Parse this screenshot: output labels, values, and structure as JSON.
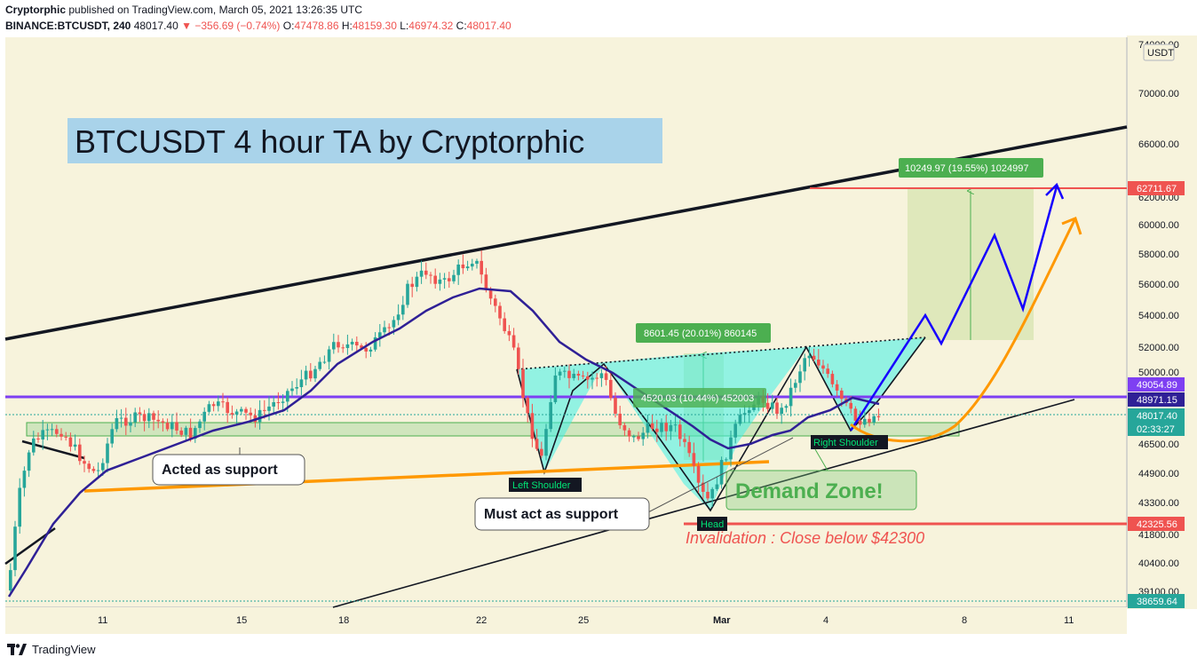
{
  "header": {
    "author": "Cryptorphic",
    "published_text": "published on TradingView.com, March 05, 2021 13:26:35 UTC",
    "symbol": "BINANCE:BTCUSDT, 240",
    "last": "48017.40",
    "change": "−356.69 (−0.74%)",
    "o_label": "O:",
    "o": "47478.86",
    "h_label": "H:",
    "h": "48159.30",
    "l_label": "L:",
    "l": "46974.32",
    "c_label": "C:",
    "c": "48017.40"
  },
  "footer": {
    "brand": "TradingView"
  },
  "colors": {
    "bg": "#f7f3dc",
    "up": "#26a69a",
    "down": "#ef5350",
    "ma": "#2f2096",
    "support": "#ff9800",
    "purple": "#7e3ff2",
    "zone": "#77c877",
    "cyan": "#3ff0e8",
    "blue": "#1600ff"
  },
  "chart_data": {
    "type": "candlestick",
    "title": "BTCUSDT 4 hour TA by Cryptorphic",
    "currency": "USDT",
    "y_scale": "log",
    "y_ticks": [
      "74000.00",
      "70000.00",
      "66000.00",
      "62000.00",
      "60000.00",
      "58000.00",
      "56000.00",
      "54000.00",
      "52000.00",
      "50000.00",
      "46500.00",
      "44900.00",
      "43300.00",
      "41800.00",
      "40400.00",
      "39100.00"
    ],
    "x_ticks": [
      "11",
      "15",
      "18",
      "22",
      "25",
      "Mar",
      "4",
      "8",
      "11"
    ],
    "price_tags": [
      {
        "value": "62711.67",
        "color": "#ef5350"
      },
      {
        "value": "49054.89",
        "color": "#7e3ff2"
      },
      {
        "value": "48971.15",
        "color": "#2f2096"
      },
      {
        "value": "48017.40",
        "color": "#26a69a"
      },
      {
        "value": "02:33:27",
        "color": "#26a69a"
      },
      {
        "value": "42325.56",
        "color": "#ef5350"
      },
      {
        "value": "38659.64",
        "color": "#26a69a"
      }
    ],
    "annotations": {
      "acted_support": "Acted as support",
      "must_support": "Must act as support",
      "left_shoulder": "Left Shoulder",
      "head": "Head",
      "right_shoulder": "Right Shoulder",
      "demand_zone": "Demand Zone!",
      "invalidation": "Invalidation : Close below $42300",
      "measure_big": "10249.97 (19.55%) 1024997",
      "measure_mid": "8601.45 (20.01%) 860145",
      "measure_small": "4520.03 (10.44%) 452003"
    }
  }
}
